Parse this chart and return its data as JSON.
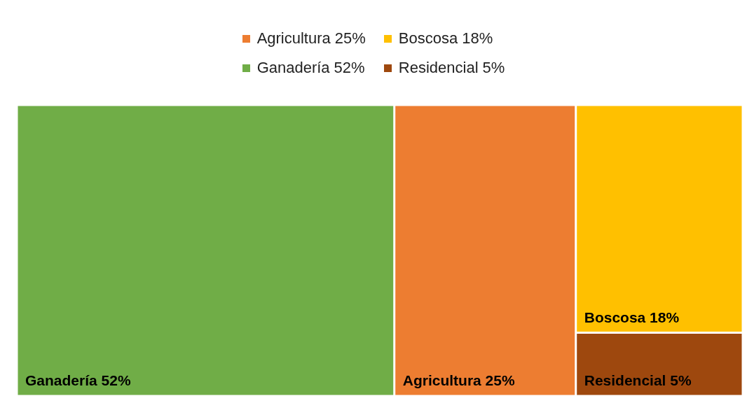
{
  "chart_data": {
    "type": "other",
    "categories": [
      "Ganadería",
      "Agricultura",
      "Boscosa",
      "Residencial"
    ],
    "values": [
      52,
      25,
      18,
      5
    ],
    "value_labels": [
      "52%",
      "25%",
      "18%",
      "5%"
    ],
    "colors": [
      "#70ad47",
      "#ed7d31",
      "#ffc000",
      "#9e480e"
    ]
  }
}
